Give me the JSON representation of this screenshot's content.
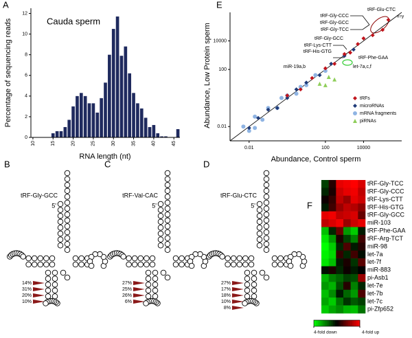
{
  "chart_data": [
    {
      "panel": "A",
      "type": "histogram",
      "title": "Cauda sperm",
      "xlabel": "RNA length (nt)",
      "ylabel": "Percentage of sequencing reads",
      "bins": [
        9.5,
        10.5,
        11.5,
        12.5,
        13.5,
        14.5,
        15.5,
        16.5,
        17.5,
        18.5,
        19.5,
        20.5,
        21.5,
        22.5,
        23.5,
        24.5,
        25.5,
        26.5,
        27.5,
        28.5,
        29.5,
        30.5,
        31.5,
        32.5,
        33.5,
        34.5,
        35.5,
        36.5,
        37.5,
        38.5,
        39.5,
        40.5,
        41.5,
        42.5,
        43.5,
        44.5,
        45.5,
        46.5
      ],
      "values": [
        0,
        0,
        0,
        0,
        0,
        0.4,
        0.6,
        0.6,
        1.0,
        1.7,
        3.0,
        4.0,
        4.3,
        4.0,
        3.3,
        3.3,
        2.4,
        3.8,
        5.3,
        8.0,
        10.5,
        11.7,
        7.9,
        8.8,
        6.2,
        4.3,
        3.3,
        2.8,
        1.9,
        1.0,
        1.2,
        0.4,
        0.1,
        0.1,
        0,
        0,
        0.8
      ],
      "color": "#1f2a5e",
      "xlim": [
        9.5,
        46.5
      ],
      "xticks": [
        10,
        15,
        20,
        25,
        30,
        35,
        40,
        45
      ],
      "ylim": [
        0,
        12.5
      ],
      "yticks": [
        0,
        2,
        4,
        6,
        8,
        10,
        12
      ]
    },
    {
      "panel": "E",
      "type": "scatter",
      "xscale": "log",
      "yscale": "log",
      "xlabel": "Abundance, Control sperm",
      "ylabel": "Abundance, Low Protein sperm",
      "xlim": [
        0.001,
        1000000
      ],
      "ylim": [
        0.001,
        1000000
      ],
      "xticks": [
        0.01,
        100,
        10000
      ],
      "yticks": [
        0.01,
        100,
        10000
      ],
      "legend": "lower right",
      "series": [
        {
          "name": "mRNA fragments",
          "color": "#8fb4e3",
          "marker": "circle",
          "x": [
            0.005,
            0.01,
            0.02,
            0.05,
            0.1,
            0.3,
            1,
            3,
            10,
            30,
            100,
            0.02,
            0.5,
            5
          ],
          "y": [
            0.01,
            0.005,
            0.05,
            0.03,
            0.2,
            0.2,
            1.5,
            2,
            8,
            40,
            80,
            0.008,
            1,
            6
          ]
        },
        {
          "name": "microRNAs",
          "color": "#1f3a78",
          "marker": "diamond",
          "x": [
            0.01,
            0.03,
            0.1,
            0.3,
            1,
            3,
            10,
            50,
            200,
            1000,
            3000
          ],
          "y": [
            0.008,
            0.04,
            0.15,
            0.2,
            1,
            4,
            12,
            40,
            250,
            900,
            2500
          ]
        },
        {
          "name": "tRFs",
          "color": "#c0141c",
          "marker": "diamond",
          "x": [
            1,
            5,
            20,
            100,
            300,
            1000,
            2000,
            5000,
            10000,
            30000,
            100000,
            200000
          ],
          "y": [
            1.5,
            4,
            25,
            120,
            250,
            1200,
            1500,
            6000,
            15000,
            25000,
            60000,
            300000
          ]
        },
        {
          "name": "piRNAs",
          "color": "#8fce5a",
          "marker": "triangle",
          "x": [
            50,
            100,
            150,
            300
          ],
          "y": [
            10,
            8,
            30,
            20
          ]
        }
      ],
      "annotations": [
        "tRF-Glu-CTC",
        "x=y",
        "tRF-Gly-CCC",
        "tRF-Gly-GCC",
        "tRF-Gly-TCC",
        "tRF-Gly-GCC",
        "tRF-Lys-CTT",
        "tRF-His-GTG",
        "tRF-Phe-GAA",
        "let-7a,c,f",
        "miR-19a,b"
      ]
    },
    {
      "panel": "F",
      "type": "heatmap",
      "rows": [
        "tRF-Gly-TCC",
        "tRF-Gly-CCC",
        "tRF-Lys-CTT",
        "tRF-His-GTG",
        "tRF-Gly-GCC",
        "miR-103",
        "tRF-Phe-GAA",
        "tRF-Arg-TCT",
        "miR-98",
        "let-7a",
        "let-7f",
        "miR-883",
        "pi-Asb1",
        "let-7e",
        "let-7b",
        "let-7c",
        "pi-Zfp652"
      ],
      "values": [
        [
          -0.5,
          0.3,
          1.8,
          1.9,
          2,
          1.7
        ],
        [
          -0.3,
          0.2,
          1.6,
          1.8,
          1.9,
          1.5
        ],
        [
          0.1,
          0.4,
          1.5,
          1.2,
          1.8,
          1.6
        ],
        [
          -0.2,
          0.5,
          1.2,
          1.5,
          1.4,
          1.1
        ],
        [
          1.8,
          1.9,
          1.5,
          1.6,
          1.7,
          0.8
        ],
        [
          1.5,
          1.7,
          1.9,
          1.2,
          1.6,
          1.8
        ],
        [
          -1.5,
          -0.3,
          0.8,
          -1.2,
          -1.6,
          -0.2
        ],
        [
          -1.8,
          -1.2,
          0.2,
          -0.5,
          -1.0,
          0.5
        ],
        [
          -2,
          -1.6,
          -0.3,
          0.6,
          -0.2,
          0.3
        ],
        [
          -1.9,
          -1.7,
          0.4,
          -0.3,
          0.5,
          -0.1
        ],
        [
          -1.8,
          -1.5,
          -0.2,
          0.2,
          -0.4,
          0.7
        ],
        [
          -0.1,
          0.2,
          -0.3,
          0.1,
          -0.2,
          0.0
        ],
        [
          -1.4,
          -1.0,
          -0.8,
          -0.5,
          -0.6,
          1.2
        ],
        [
          -1.2,
          -1.4,
          -0.6,
          0.3,
          -1.0,
          -0.3
        ],
        [
          -1.5,
          -1.1,
          -0.2,
          -0.8,
          -1.2,
          0.6
        ],
        [
          -1.3,
          -1.6,
          -0.9,
          -0.4,
          -0.7,
          -0.5
        ],
        [
          -1.6,
          -1.3,
          -1.1,
          -1.4,
          -1.5,
          -0.9
        ]
      ],
      "zlim": [
        -2,
        2
      ],
      "colors": [
        "#00ff00",
        "#000000",
        "#ff0000"
      ],
      "zticks": [
        {
          "value": -2,
          "label": "4-fold down"
        },
        {
          "value": 2,
          "label": "4-fold up"
        }
      ]
    }
  ],
  "diagrams": [
    {
      "panel": "B",
      "label": "tRF-Gly-GCC",
      "end": "5'",
      "percents": [
        "14%",
        "31%",
        "20%",
        "10%"
      ]
    },
    {
      "panel": "C",
      "label": "tRF-Val-CAC",
      "end": "5'",
      "percents": [
        "27%",
        "25%",
        "26%",
        "6%"
      ]
    },
    {
      "panel": "D",
      "label": "tRF-Glu-CTC",
      "end": "5'",
      "percents": [
        "27%",
        "17%",
        "18%",
        "10%",
        "8%"
      ]
    }
  ]
}
